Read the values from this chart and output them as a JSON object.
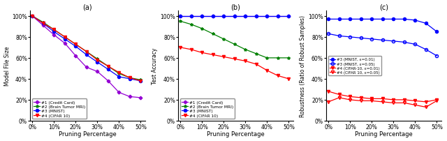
{
  "pruning_pct": [
    0,
    5,
    10,
    15,
    20,
    25,
    30,
    35,
    40,
    45,
    50
  ],
  "xtick_vals": [
    0,
    10,
    20,
    30,
    40,
    50
  ],
  "plot_a": {
    "title": "(a)",
    "ylabel": "Model File Size",
    "xlabel": "Pruning Percentage",
    "ylim": [
      0,
      105
    ],
    "yticks": [
      0,
      20,
      40,
      60,
      80,
      100
    ],
    "series": [
      {
        "label": "#1 (Credit Card)",
        "color": "#9400D3",
        "marker": "P",
        "fillstyle": "full",
        "values": [
          100,
          91,
          82,
          74,
          62,
          51,
          47,
          38,
          27,
          23,
          22
        ]
      },
      {
        "label": "#2 (Brain Tumor MRI)",
        "color": "green",
        "marker": "*",
        "fillstyle": "full",
        "values": [
          100,
          94,
          87,
          80,
          73,
          66,
          59,
          52,
          45,
          41,
          39
        ]
      },
      {
        "label": "#3 (MNIST)",
        "color": "blue",
        "marker": "o",
        "fillstyle": "full",
        "values": [
          100,
          93,
          85,
          78,
          71,
          63,
          56,
          49,
          42,
          40,
          38
        ]
      },
      {
        "label": "#4 (CIFAR 10)",
        "color": "red",
        "marker": "v",
        "fillstyle": "full",
        "values": [
          100,
          93,
          87,
          80,
          73,
          66,
          58,
          52,
          46,
          41,
          38
        ]
      }
    ]
  },
  "plot_b": {
    "title": "(b)",
    "ylabel": "Test Accuracy",
    "xlabel": "Pruning Percentage",
    "ylim": [
      0,
      105
    ],
    "yticks": [
      0,
      20,
      40,
      60,
      80,
      100
    ],
    "series": [
      {
        "label": "#1 (Credit Card)",
        "color": "#9400D3",
        "marker": "P",
        "fillstyle": "full",
        "values": [
          100,
          100,
          100,
          100,
          100,
          100,
          100,
          100,
          100,
          100,
          100
        ]
      },
      {
        "label": "#2 (Brain Tumor MRI)",
        "color": "green",
        "marker": "*",
        "fillstyle": "full",
        "values": [
          95,
          92,
          88,
          83,
          78,
          73,
          68,
          64,
          60,
          60,
          60
        ]
      },
      {
        "label": "#3 (MNIST)",
        "color": "blue",
        "marker": "o",
        "fillstyle": "full",
        "values": [
          100,
          100,
          100,
          100,
          100,
          100,
          100,
          100,
          100,
          100,
          100
        ]
      },
      {
        "label": "#4 (CIFAR 10)",
        "color": "red",
        "marker": "v",
        "fillstyle": "full",
        "values": [
          70,
          68,
          65,
          63,
          61,
          59,
          57,
          54,
          48,
          43,
          40
        ]
      }
    ]
  },
  "plot_c": {
    "title": "(c)",
    "ylabel": "Robustness (Ratio of Robust Samples)",
    "xlabel": "Pruning Percentage",
    "ylim": [
      0,
      105
    ],
    "yticks": [
      0,
      20,
      40,
      60,
      80,
      100
    ],
    "series": [
      {
        "label": "#3 (MNIST, ε=0.01)",
        "color": "blue",
        "marker": "o",
        "fillstyle": "full",
        "values": [
          97,
          97,
          97,
          97,
          97,
          97,
          97,
          97,
          96,
          93,
          85
        ]
      },
      {
        "label": "#3 (MNIST, ε=0.05)",
        "color": "blue",
        "marker": "o",
        "fillstyle": "none",
        "values": [
          83,
          81,
          80,
          79,
          78,
          77,
          76,
          75,
          73,
          68,
          62
        ]
      },
      {
        "label": "#4 (CIFAR-10, ε=0.01)",
        "color": "red",
        "marker": "v",
        "fillstyle": "full",
        "values": [
          28,
          25,
          23,
          22,
          21,
          21,
          20,
          20,
          19,
          18,
          20
        ]
      },
      {
        "label": "#4 (CIFAR 10, ε=0.05)",
        "color": "red",
        "marker": "v",
        "fillstyle": "none",
        "values": [
          18,
          22,
          20,
          19,
          19,
          18,
          17,
          17,
          15,
          13,
          19
        ]
      }
    ]
  }
}
